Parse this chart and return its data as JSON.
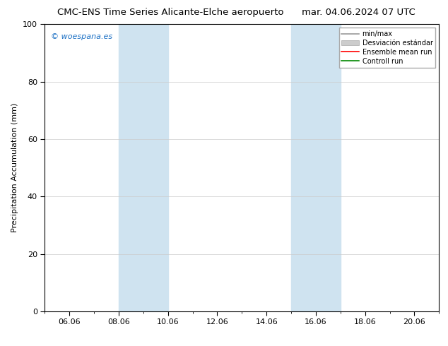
{
  "title_left": "CMC-ENS Time Series Alicante-Elche aeropuerto",
  "title_right": "mar. 04.06.2024 07 UTC",
  "ylabel": "Precipitation Accumulation (mm)",
  "ylim": [
    0,
    100
  ],
  "xlim": [
    5.0,
    21.0
  ],
  "xtick_positions": [
    6,
    8,
    10,
    12,
    14,
    16,
    18,
    20
  ],
  "xtick_labels": [
    "06.06",
    "08.06",
    "10.06",
    "12.06",
    "14.06",
    "16.06",
    "18.06",
    "20.06"
  ],
  "ytick_positions": [
    0,
    20,
    40,
    60,
    80,
    100
  ],
  "shaded_bands": [
    {
      "xmin": 8.0,
      "xmax": 10.0,
      "color": "#cfe3f0",
      "alpha": 1.0
    },
    {
      "xmin": 15.0,
      "xmax": 17.0,
      "color": "#cfe3f0",
      "alpha": 1.0
    }
  ],
  "legend_entries": [
    {
      "label": "min/max",
      "color": "#999999",
      "lw": 1.2,
      "ls": "-",
      "type": "line"
    },
    {
      "label": "Desviación estándar",
      "color": "#cccccc",
      "lw": 5,
      "ls": "-",
      "type": "band"
    },
    {
      "label": "Ensemble mean run",
      "color": "#ff0000",
      "lw": 1.2,
      "ls": "-",
      "type": "line"
    },
    {
      "label": "Controll run",
      "color": "#008800",
      "lw": 1.2,
      "ls": "-",
      "type": "line"
    }
  ],
  "watermark": "© woespana.es",
  "watermark_color": "#1a6fc4",
  "background_color": "#ffffff",
  "plot_bg_color": "#ffffff",
  "grid_color": "#cccccc",
  "title_fontsize": 9.5,
  "axis_label_fontsize": 8,
  "tick_fontsize": 8,
  "legend_fontsize": 7
}
